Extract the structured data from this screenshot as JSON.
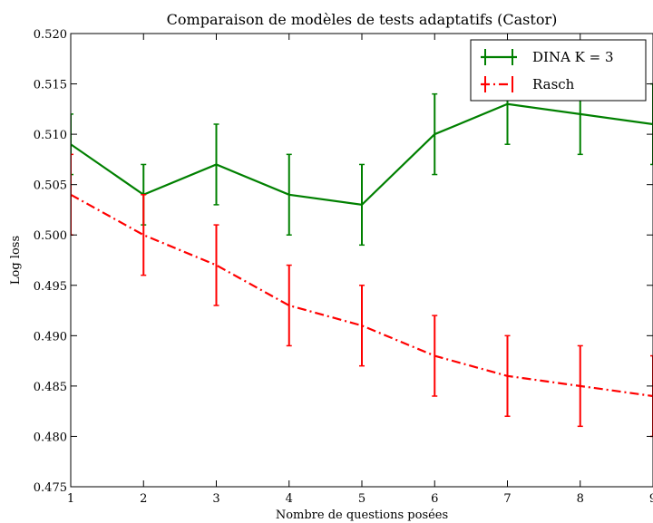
{
  "chart_data": {
    "type": "line",
    "title": "Comparaison de modèles de tests adaptatifs (Castor)",
    "xlabel": "Nombre de questions posées",
    "ylabel": "Log loss",
    "xlim": [
      1,
      9
    ],
    "ylim": [
      0.475,
      0.52
    ],
    "x_ticks": [
      "1",
      "2",
      "3",
      "4",
      "5",
      "6",
      "7",
      "8",
      "9"
    ],
    "y_ticks": [
      "0.475",
      "0.480",
      "0.485",
      "0.490",
      "0.495",
      "0.500",
      "0.505",
      "0.510",
      "0.515",
      "0.520"
    ],
    "grid": false,
    "legend_position": "top-right",
    "series": [
      {
        "name": "DINA K = 3",
        "color": "#008000",
        "line_style": "solid",
        "x": [
          1,
          2,
          3,
          4,
          5,
          6,
          7,
          8,
          9
        ],
        "y": [
          0.509,
          0.504,
          0.507,
          0.504,
          0.503,
          0.51,
          0.513,
          0.512,
          0.511
        ],
        "error": [
          0.003,
          0.003,
          0.004,
          0.004,
          0.004,
          0.004,
          0.004,
          0.004,
          0.004
        ]
      },
      {
        "name": "Rasch",
        "color": "#ff0000",
        "line_style": "dashdot",
        "x": [
          1,
          2,
          3,
          4,
          5,
          6,
          7,
          8,
          9
        ],
        "y": [
          0.504,
          0.5,
          0.497,
          0.493,
          0.491,
          0.488,
          0.486,
          0.485,
          0.484
        ],
        "error": [
          0.004,
          0.004,
          0.004,
          0.004,
          0.004,
          0.004,
          0.004,
          0.004,
          0.004
        ]
      }
    ]
  }
}
